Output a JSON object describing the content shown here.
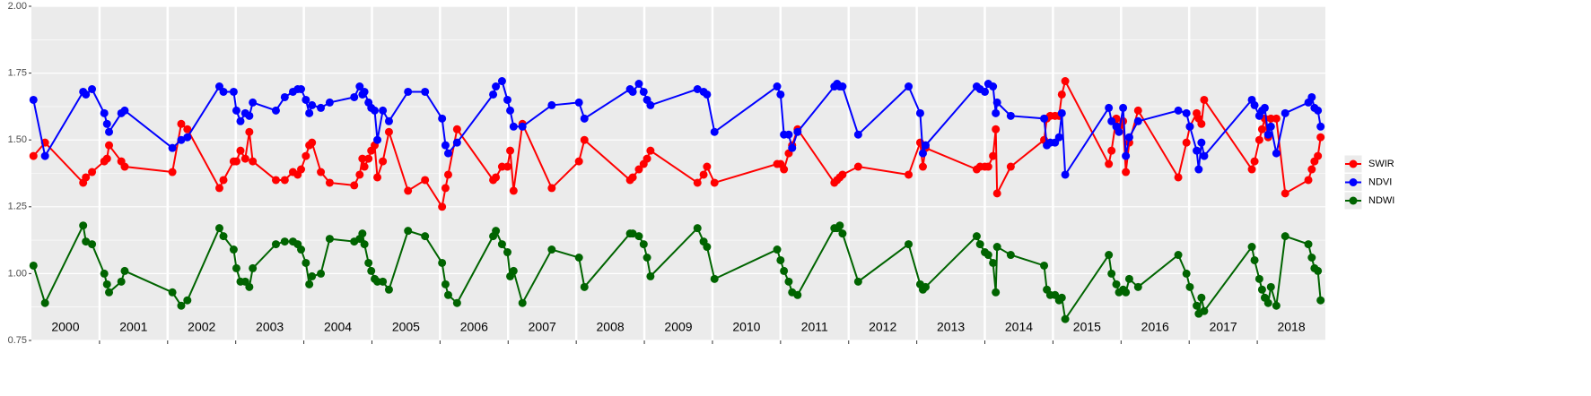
{
  "chart_data": {
    "type": "line",
    "x": [
      2000.03,
      2000.2,
      2000.76,
      2000.8,
      2000.89,
      2001.07,
      2001.11,
      2001.14,
      2001.32,
      2001.37,
      2002.07,
      2002.2,
      2002.29,
      2002.76,
      2002.82,
      2002.97,
      2003.01,
      2003.07,
      2003.14,
      2003.2,
      2003.25,
      2003.59,
      2003.72,
      2003.84,
      2003.91,
      2003.96,
      2004.03,
      2004.08,
      2004.12,
      2004.25,
      2004.38,
      2004.74,
      2004.82,
      2004.86,
      2004.89,
      2004.95,
      2004.99,
      2005.04,
      2005.08,
      2005.16,
      2005.25,
      2005.53,
      2005.78,
      2006.03,
      2006.08,
      2006.12,
      2006.25,
      2006.78,
      2006.82,
      2006.91,
      2006.99,
      2007.03,
      2007.08,
      2007.21,
      2007.64,
      2008.04,
      2008.12,
      2008.79,
      2008.83,
      2008.92,
      2008.99,
      2009.04,
      2009.09,
      2009.78,
      2009.87,
      2009.92,
      2010.03,
      2010.95,
      2011.0,
      2011.05,
      2011.12,
      2011.17,
      2011.25,
      2011.79,
      2011.83,
      2011.87,
      2011.91,
      2012.14,
      2012.88,
      2013.05,
      2013.09,
      2013.13,
      2013.88,
      2013.93,
      2014.0,
      2014.05,
      2014.12,
      2014.16,
      2014.18,
      2014.38,
      2014.87,
      2014.91,
      2014.96,
      2015.03,
      2015.09,
      2015.13,
      2015.18,
      2015.82,
      2015.86,
      2015.93,
      2015.97,
      2016.03,
      2016.07,
      2016.12,
      2016.25,
      2016.84,
      2016.96,
      2017.01,
      2017.11,
      2017.14,
      2017.18,
      2017.22,
      2017.92,
      2017.96,
      2018.03,
      2018.07,
      2018.11,
      2018.16,
      2018.2,
      2018.28,
      2018.41,
      2018.75,
      2018.8,
      2018.84,
      2018.89,
      2018.93
    ],
    "series": [
      {
        "name": "SWIR",
        "color": "#ff0000",
        "values": [
          1.44,
          1.49,
          1.34,
          1.36,
          1.38,
          1.42,
          1.43,
          1.48,
          1.42,
          1.4,
          1.38,
          1.56,
          1.54,
          1.32,
          1.35,
          1.42,
          1.42,
          1.46,
          1.43,
          1.53,
          1.42,
          1.35,
          1.35,
          1.38,
          1.37,
          1.39,
          1.44,
          1.48,
          1.49,
          1.38,
          1.34,
          1.33,
          1.37,
          1.43,
          1.4,
          1.43,
          1.46,
          1.48,
          1.36,
          1.42,
          1.53,
          1.31,
          1.35,
          1.25,
          1.32,
          1.37,
          1.54,
          1.35,
          1.36,
          1.4,
          1.4,
          1.46,
          1.31,
          1.56,
          1.32,
          1.42,
          1.5,
          1.35,
          1.36,
          1.39,
          1.41,
          1.43,
          1.46,
          1.34,
          1.37,
          1.4,
          1.34,
          1.41,
          1.41,
          1.39,
          1.45,
          1.48,
          1.54,
          1.34,
          1.35,
          1.36,
          1.37,
          1.4,
          1.37,
          1.49,
          1.4,
          1.47,
          1.39,
          1.4,
          1.4,
          1.4,
          1.44,
          1.54,
          1.3,
          1.4,
          1.5,
          1.58,
          1.59,
          1.59,
          1.59,
          1.67,
          1.72,
          1.41,
          1.46,
          1.58,
          1.55,
          1.57,
          1.38,
          1.49,
          1.61,
          1.36,
          1.49,
          1.55,
          1.6,
          1.58,
          1.56,
          1.65,
          1.39,
          1.42,
          1.5,
          1.54,
          1.58,
          1.51,
          1.58,
          1.58,
          1.3,
          1.35,
          1.39,
          1.42,
          1.44,
          1.51
        ]
      },
      {
        "name": "NDVI",
        "color": "#0000ff",
        "values": [
          1.65,
          1.44,
          1.68,
          1.67,
          1.69,
          1.6,
          1.56,
          1.53,
          1.6,
          1.61,
          1.47,
          1.5,
          1.51,
          1.7,
          1.68,
          1.68,
          1.61,
          1.57,
          1.6,
          1.59,
          1.64,
          1.61,
          1.66,
          1.68,
          1.69,
          1.69,
          1.65,
          1.6,
          1.63,
          1.62,
          1.64,
          1.66,
          1.7,
          1.67,
          1.68,
          1.64,
          1.62,
          1.61,
          1.5,
          1.61,
          1.57,
          1.68,
          1.68,
          1.58,
          1.48,
          1.45,
          1.49,
          1.67,
          1.7,
          1.72,
          1.65,
          1.61,
          1.55,
          1.55,
          1.63,
          1.64,
          1.58,
          1.69,
          1.68,
          1.71,
          1.68,
          1.65,
          1.63,
          1.69,
          1.68,
          1.67,
          1.53,
          1.7,
          1.67,
          1.52,
          1.52,
          1.47,
          1.53,
          1.7,
          1.71,
          1.7,
          1.7,
          1.52,
          1.7,
          1.6,
          1.45,
          1.48,
          1.7,
          1.69,
          1.68,
          1.71,
          1.7,
          1.6,
          1.64,
          1.59,
          1.58,
          1.48,
          1.49,
          1.49,
          1.51,
          1.6,
          1.37,
          1.62,
          1.57,
          1.55,
          1.53,
          1.62,
          1.44,
          1.51,
          1.57,
          1.61,
          1.6,
          1.55,
          1.46,
          1.39,
          1.49,
          1.44,
          1.65,
          1.63,
          1.59,
          1.61,
          1.62,
          1.52,
          1.55,
          1.45,
          1.6,
          1.64,
          1.66,
          1.62,
          1.61,
          1.55
        ]
      },
      {
        "name": "NDWI",
        "color": "#006400",
        "values": [
          1.03,
          0.89,
          1.18,
          1.12,
          1.11,
          1.0,
          0.96,
          0.93,
          0.97,
          1.01,
          0.93,
          0.88,
          0.9,
          1.17,
          1.14,
          1.09,
          1.02,
          0.97,
          0.97,
          0.95,
          1.02,
          1.11,
          1.12,
          1.12,
          1.11,
          1.09,
          1.04,
          0.96,
          0.99,
          1.0,
          1.13,
          1.12,
          1.13,
          1.15,
          1.11,
          1.04,
          1.01,
          0.98,
          0.97,
          0.97,
          0.94,
          1.16,
          1.14,
          1.04,
          0.96,
          0.92,
          0.89,
          1.14,
          1.16,
          1.11,
          1.08,
          0.99,
          1.01,
          0.89,
          1.09,
          1.06,
          0.95,
          1.15,
          1.15,
          1.14,
          1.11,
          1.06,
          0.99,
          1.17,
          1.12,
          1.1,
          0.98,
          1.09,
          1.05,
          1.01,
          0.97,
          0.93,
          0.92,
          1.17,
          1.17,
          1.18,
          1.15,
          0.97,
          1.11,
          0.96,
          0.94,
          0.95,
          1.14,
          1.11,
          1.08,
          1.07,
          1.04,
          0.93,
          1.1,
          1.07,
          1.03,
          0.94,
          0.92,
          0.92,
          0.9,
          0.91,
          0.83,
          1.07,
          1.0,
          0.96,
          0.93,
          0.94,
          0.93,
          0.98,
          0.95,
          1.07,
          1.0,
          0.95,
          0.88,
          0.85,
          0.91,
          0.86,
          1.1,
          1.05,
          0.98,
          0.94,
          0.91,
          0.89,
          0.95,
          0.88,
          1.14,
          1.11,
          1.06,
          1.02,
          1.01,
          0.9
        ]
      }
    ],
    "xlim": [
      2000,
      2019
    ],
    "xticks": [
      2001,
      2002,
      2003,
      2004,
      2005,
      2006,
      2007,
      2008,
      2009,
      2010,
      2011,
      2012,
      2013,
      2014,
      2015,
      2016,
      2017,
      2018
    ],
    "year_labels": [
      2000,
      2001,
      2002,
      2003,
      2004,
      2005,
      2006,
      2007,
      2008,
      2009,
      2010,
      2011,
      2012,
      2013,
      2014,
      2015,
      2016,
      2017,
      2018
    ],
    "ylim": [
      0.75,
      2.0
    ],
    "yticks": [
      0.75,
      {
        "value": 1.0,
        "label": "1.00"
      },
      1.25,
      {
        "value": 1.5,
        "label": "1.50"
      },
      1.75,
      {
        "value": 2.0,
        "label": "2.00"
      }
    ],
    "grid": true,
    "legend": "right"
  }
}
